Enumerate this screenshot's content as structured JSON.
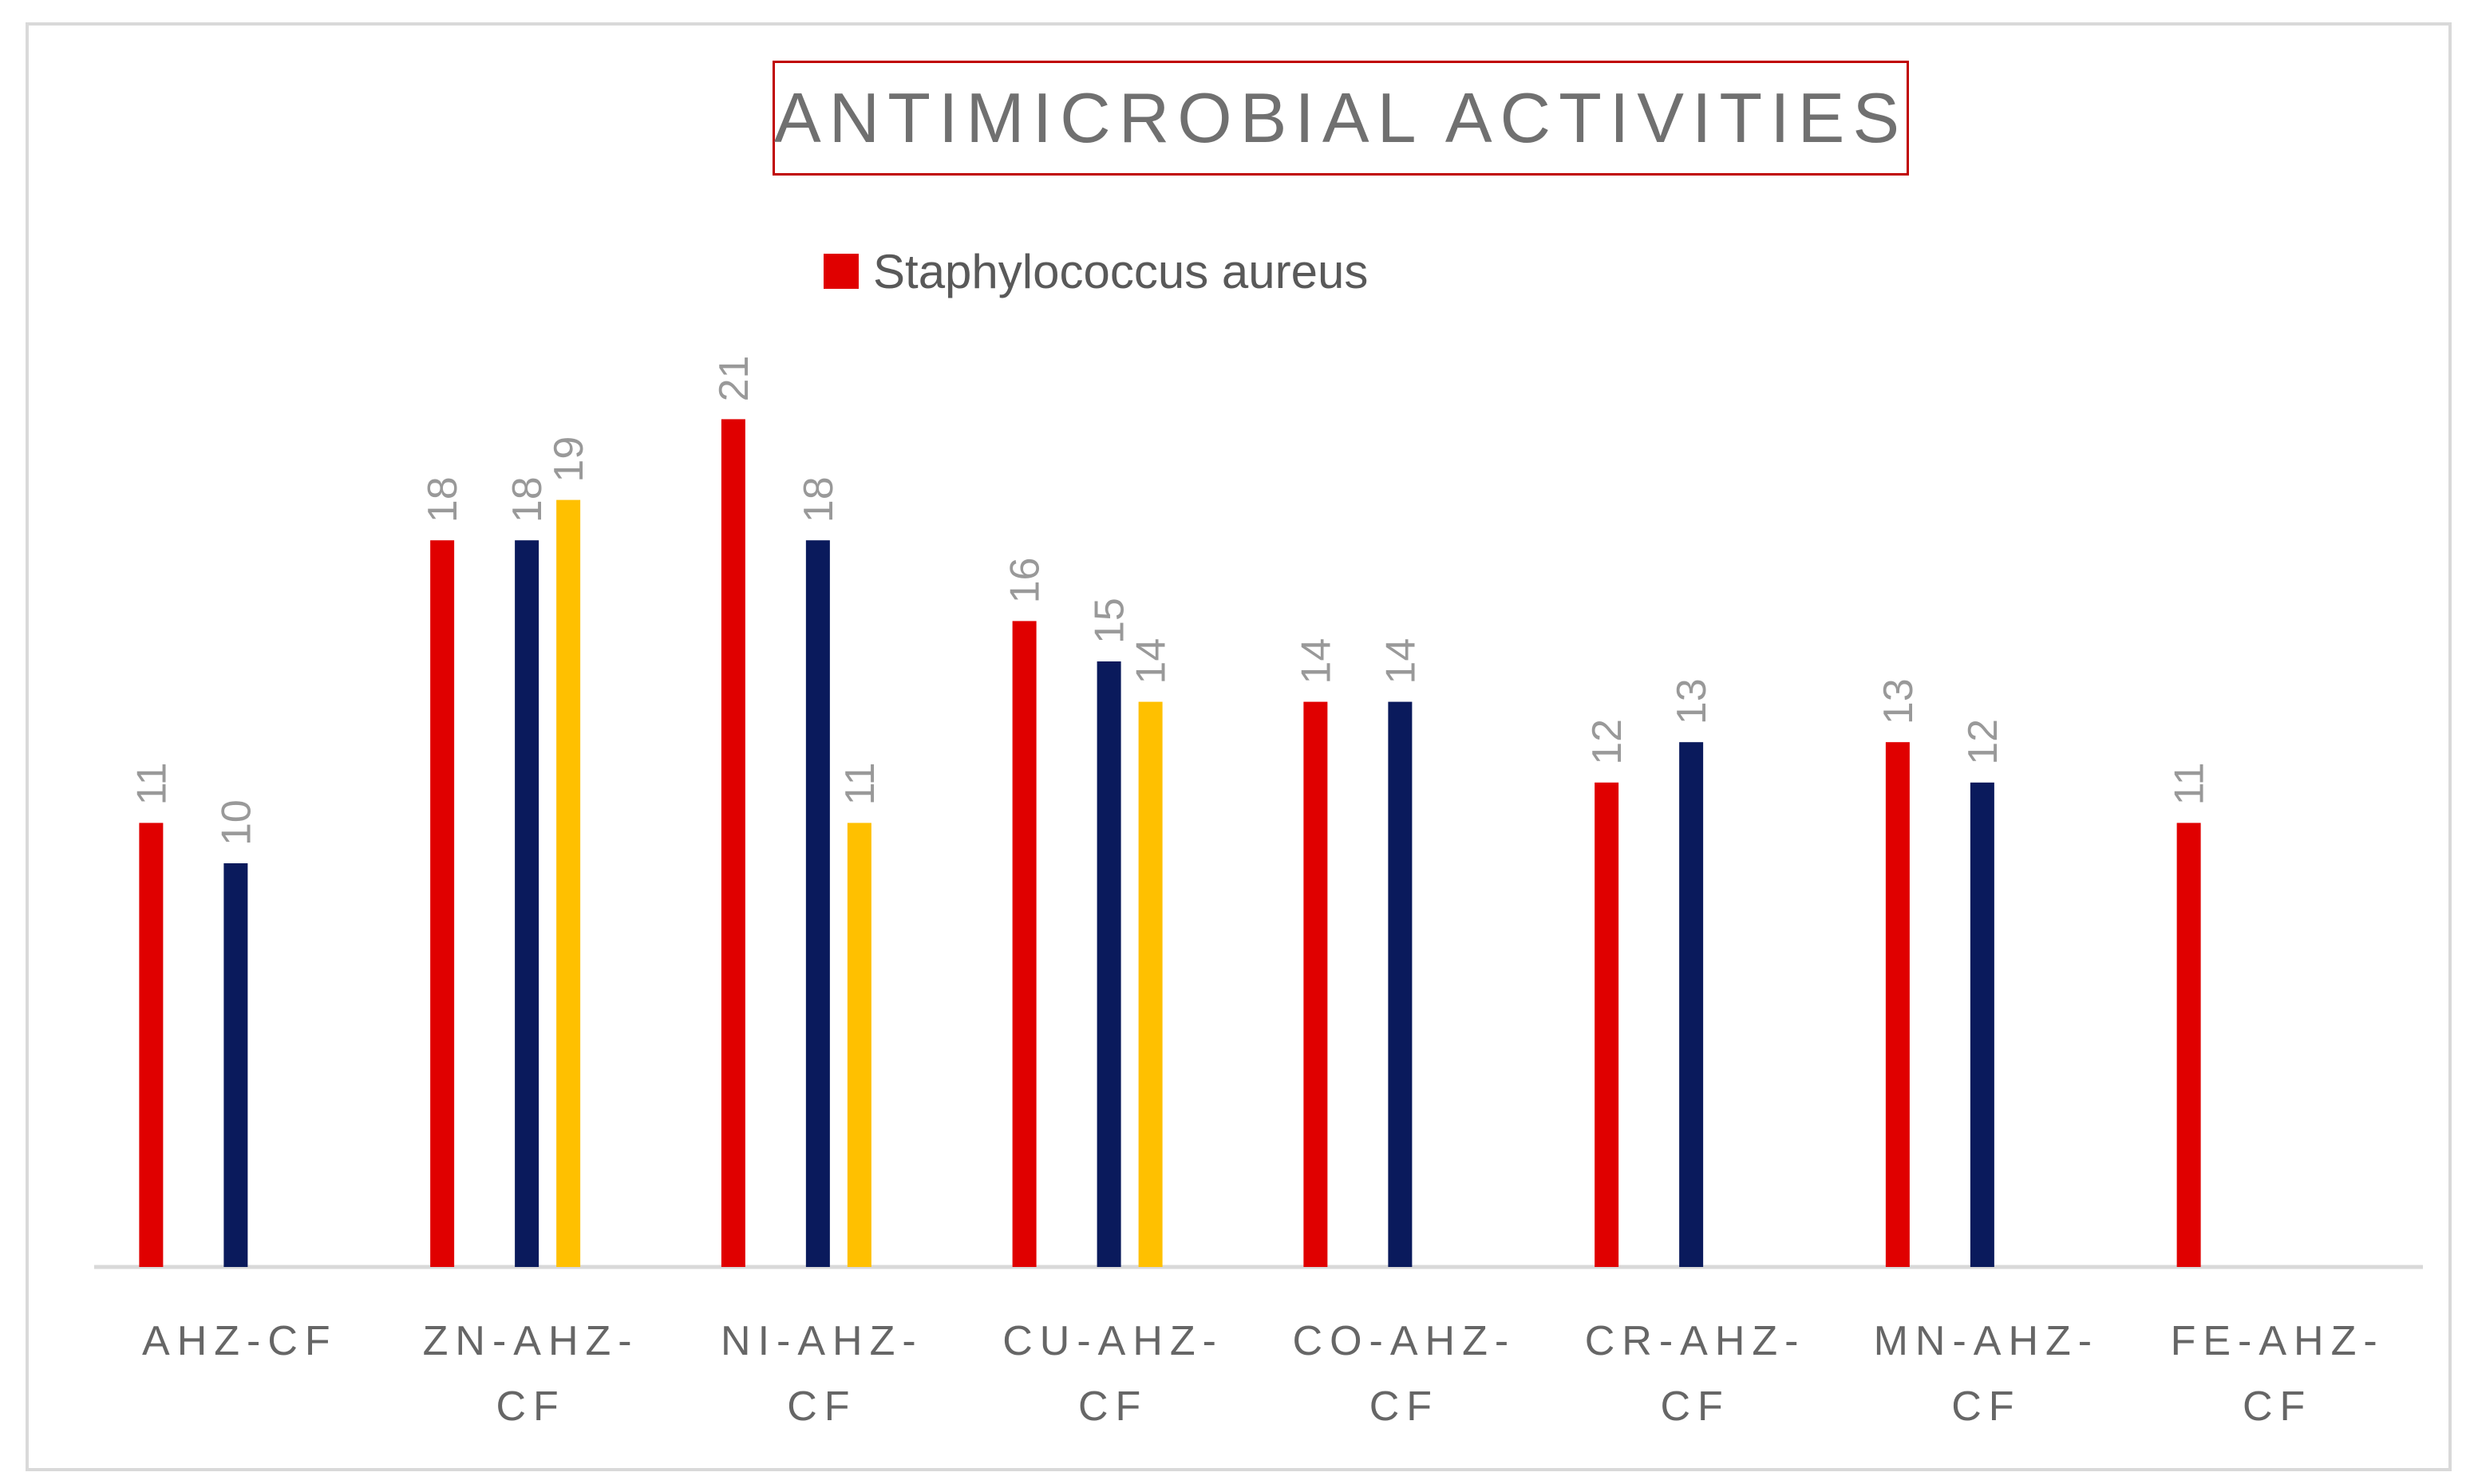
{
  "chart_data": {
    "type": "bar",
    "title": "ANTIMICROBIAL ACTIVITIES",
    "categories": [
      [
        "AHZ-CF"
      ],
      [
        "ZN-AHZ-",
        "CF"
      ],
      [
        "NI-AHZ-",
        "CF"
      ],
      [
        "CU-AHZ-",
        "CF"
      ],
      [
        "CO-AHZ-",
        "CF"
      ],
      [
        "CR-AHZ-",
        "CF"
      ],
      [
        "MN-AHZ-",
        "CF"
      ],
      [
        "FE-AHZ-",
        "CF"
      ]
    ],
    "series": [
      {
        "name": "Staphylococcus aureus",
        "color": "#e00000",
        "values": [
          11,
          18,
          21,
          16,
          14,
          12,
          13,
          11
        ]
      },
      {
        "name": "",
        "color": "#0a1a5c",
        "values": [
          10,
          18,
          18,
          15,
          14,
          13,
          12,
          null
        ]
      },
      {
        "name": "",
        "color": "#ffc000",
        "values": [
          null,
          19,
          11,
          14,
          null,
          null,
          null,
          null
        ]
      }
    ],
    "legend": {
      "position": "top",
      "entries": [
        "Staphylococcus aureus"
      ]
    },
    "ylim": [
      0,
      21
    ],
    "grid": false,
    "xlabel": "",
    "ylabel": ""
  }
}
